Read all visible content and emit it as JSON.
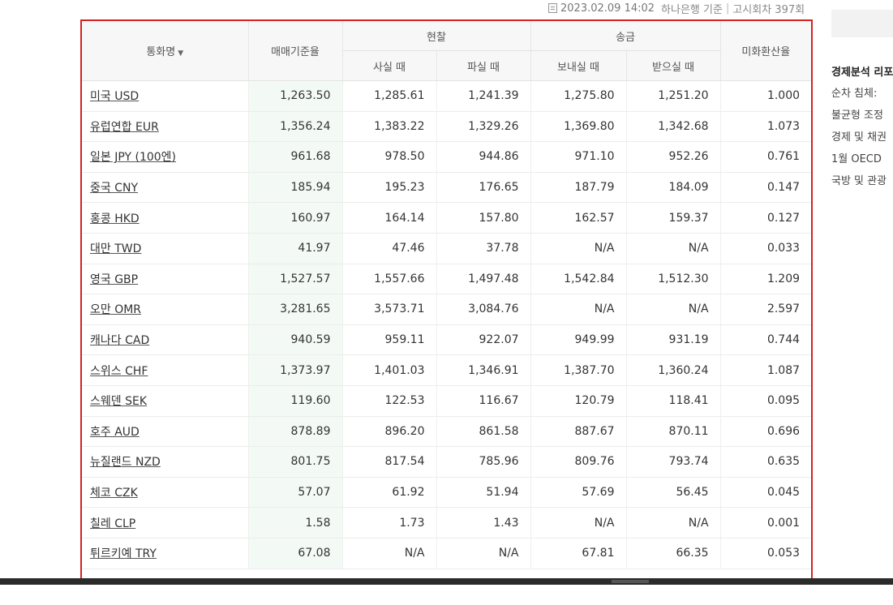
{
  "source": {
    "datetime": "2023.02.09 14:02",
    "bank": "하나은행 기준",
    "round": "고시회차 397회"
  },
  "table": {
    "headers": {
      "currency": "통화명",
      "base_rate": "매매기준율",
      "cash": "현찰",
      "cash_buy": "사실 때",
      "cash_sell": "파실 때",
      "remit": "송금",
      "remit_send": "보내실 때",
      "remit_receive": "받으실 때",
      "usd_rate": "미화환산율"
    },
    "rows": [
      {
        "name": "미국 USD",
        "base": "1,263.50",
        "cash_buy": "1,285.61",
        "cash_sell": "1,241.39",
        "send": "1,275.80",
        "receive": "1,251.20",
        "usd": "1.000"
      },
      {
        "name": "유럽연합 EUR",
        "base": "1,356.24",
        "cash_buy": "1,383.22",
        "cash_sell": "1,329.26",
        "send": "1,369.80",
        "receive": "1,342.68",
        "usd": "1.073"
      },
      {
        "name": "일본 JPY (100엔)",
        "base": "961.68",
        "cash_buy": "978.50",
        "cash_sell": "944.86",
        "send": "971.10",
        "receive": "952.26",
        "usd": "0.761"
      },
      {
        "name": "중국 CNY",
        "base": "185.94",
        "cash_buy": "195.23",
        "cash_sell": "176.65",
        "send": "187.79",
        "receive": "184.09",
        "usd": "0.147"
      },
      {
        "name": "홍콩 HKD",
        "base": "160.97",
        "cash_buy": "164.14",
        "cash_sell": "157.80",
        "send": "162.57",
        "receive": "159.37",
        "usd": "0.127"
      },
      {
        "name": "대만 TWD",
        "base": "41.97",
        "cash_buy": "47.46",
        "cash_sell": "37.78",
        "send": "N/A",
        "receive": "N/A",
        "usd": "0.033"
      },
      {
        "name": "영국 GBP",
        "base": "1,527.57",
        "cash_buy": "1,557.66",
        "cash_sell": "1,497.48",
        "send": "1,542.84",
        "receive": "1,512.30",
        "usd": "1.209"
      },
      {
        "name": "오만 OMR",
        "base": "3,281.65",
        "cash_buy": "3,573.71",
        "cash_sell": "3,084.76",
        "send": "N/A",
        "receive": "N/A",
        "usd": "2.597"
      },
      {
        "name": "캐나다 CAD",
        "base": "940.59",
        "cash_buy": "959.11",
        "cash_sell": "922.07",
        "send": "949.99",
        "receive": "931.19",
        "usd": "0.744"
      },
      {
        "name": "스위스 CHF",
        "base": "1,373.97",
        "cash_buy": "1,401.03",
        "cash_sell": "1,346.91",
        "send": "1,387.70",
        "receive": "1,360.24",
        "usd": "1.087"
      },
      {
        "name": "스웨덴 SEK",
        "base": "119.60",
        "cash_buy": "122.53",
        "cash_sell": "116.67",
        "send": "120.79",
        "receive": "118.41",
        "usd": "0.095"
      },
      {
        "name": "호주 AUD",
        "base": "878.89",
        "cash_buy": "896.20",
        "cash_sell": "861.58",
        "send": "887.67",
        "receive": "870.11",
        "usd": "0.696"
      },
      {
        "name": "뉴질랜드 NZD",
        "base": "801.75",
        "cash_buy": "817.54",
        "cash_sell": "785.96",
        "send": "809.76",
        "receive": "793.74",
        "usd": "0.635"
      },
      {
        "name": "체코 CZK",
        "base": "57.07",
        "cash_buy": "61.92",
        "cash_sell": "51.94",
        "send": "57.69",
        "receive": "56.45",
        "usd": "0.045"
      },
      {
        "name": "칠레 CLP",
        "base": "1.58",
        "cash_buy": "1.73",
        "cash_sell": "1.43",
        "send": "N/A",
        "receive": "N/A",
        "usd": "0.001"
      },
      {
        "name": "튀르키예 TRY",
        "base": "67.08",
        "cash_buy": "N/A",
        "cash_sell": "N/A",
        "send": "67.81",
        "receive": "66.35",
        "usd": "0.053"
      }
    ]
  },
  "sidebar": {
    "title": "경제분석 리포",
    "items": [
      "순차 침체:",
      "불균형 조정",
      "경제 및 채권",
      "1월 OECD",
      "국방 및 관광"
    ]
  },
  "icons": {
    "source": "document-icon",
    "sort": "caret-down-icon"
  },
  "colors": {
    "highlight_border": "#d42222",
    "base_column_bg": "#f3faf5"
  }
}
